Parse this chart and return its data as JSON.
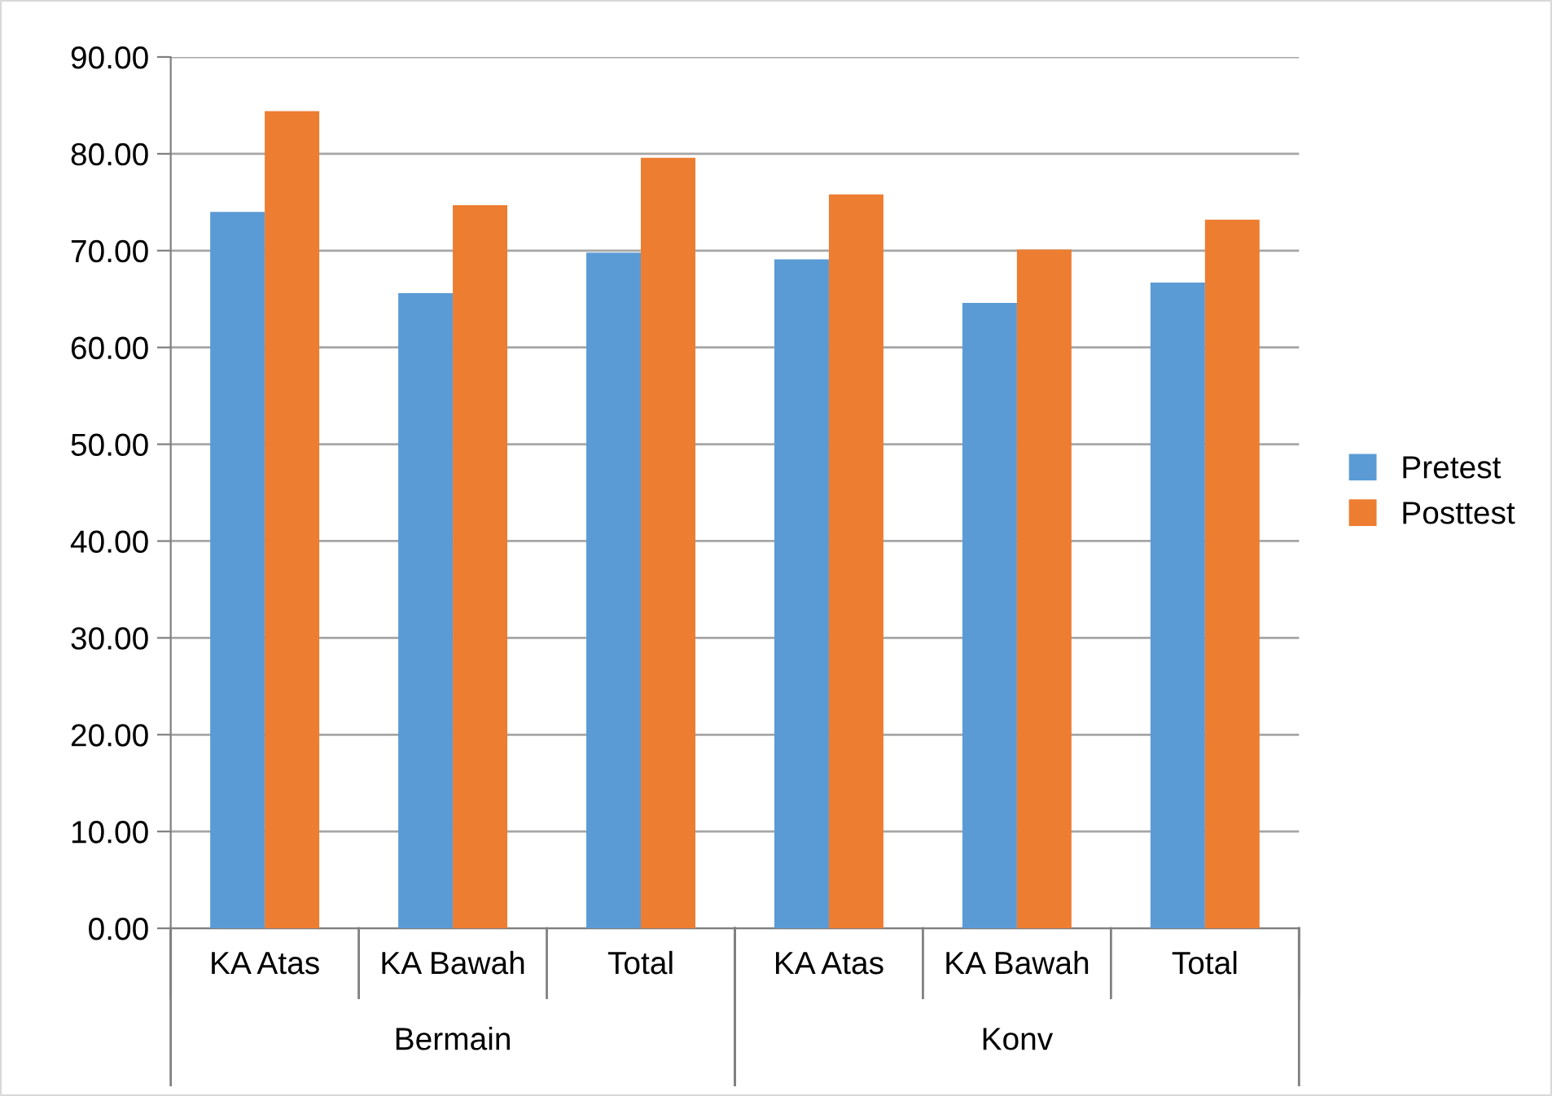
{
  "chart_data": {
    "type": "bar",
    "categories": [
      "KA Atas",
      "KA Bawah",
      "Total",
      "KA Atas",
      "KA Bawah",
      "Total"
    ],
    "series": [
      {
        "name": "Pretest",
        "color": "#5b9bd5",
        "values": [
          74.0,
          65.6,
          69.8,
          69.1,
          64.6,
          66.7
        ]
      },
      {
        "name": "Posttest",
        "color": "#ed7d31",
        "values": [
          84.4,
          74.7,
          79.6,
          75.8,
          70.1,
          73.2
        ]
      }
    ],
    "annotations": [
      "Bermain",
      "Konv"
    ],
    "ylim": [
      0,
      90
    ],
    "yticks": [
      {
        "value": 0,
        "label": "0.00"
      },
      {
        "value": 10,
        "label": "10.00"
      },
      {
        "value": 20,
        "label": "20.00"
      },
      {
        "value": 30,
        "label": "30.00"
      },
      {
        "value": 40,
        "label": "40.00"
      },
      {
        "value": 50,
        "label": "50.00"
      },
      {
        "value": 60,
        "label": "60.00"
      },
      {
        "value": 70,
        "label": "70.00"
      },
      {
        "value": 80,
        "label": "80.00"
      },
      {
        "value": 90,
        "label": "90.00"
      }
    ],
    "grid": "y",
    "legend": "right"
  }
}
